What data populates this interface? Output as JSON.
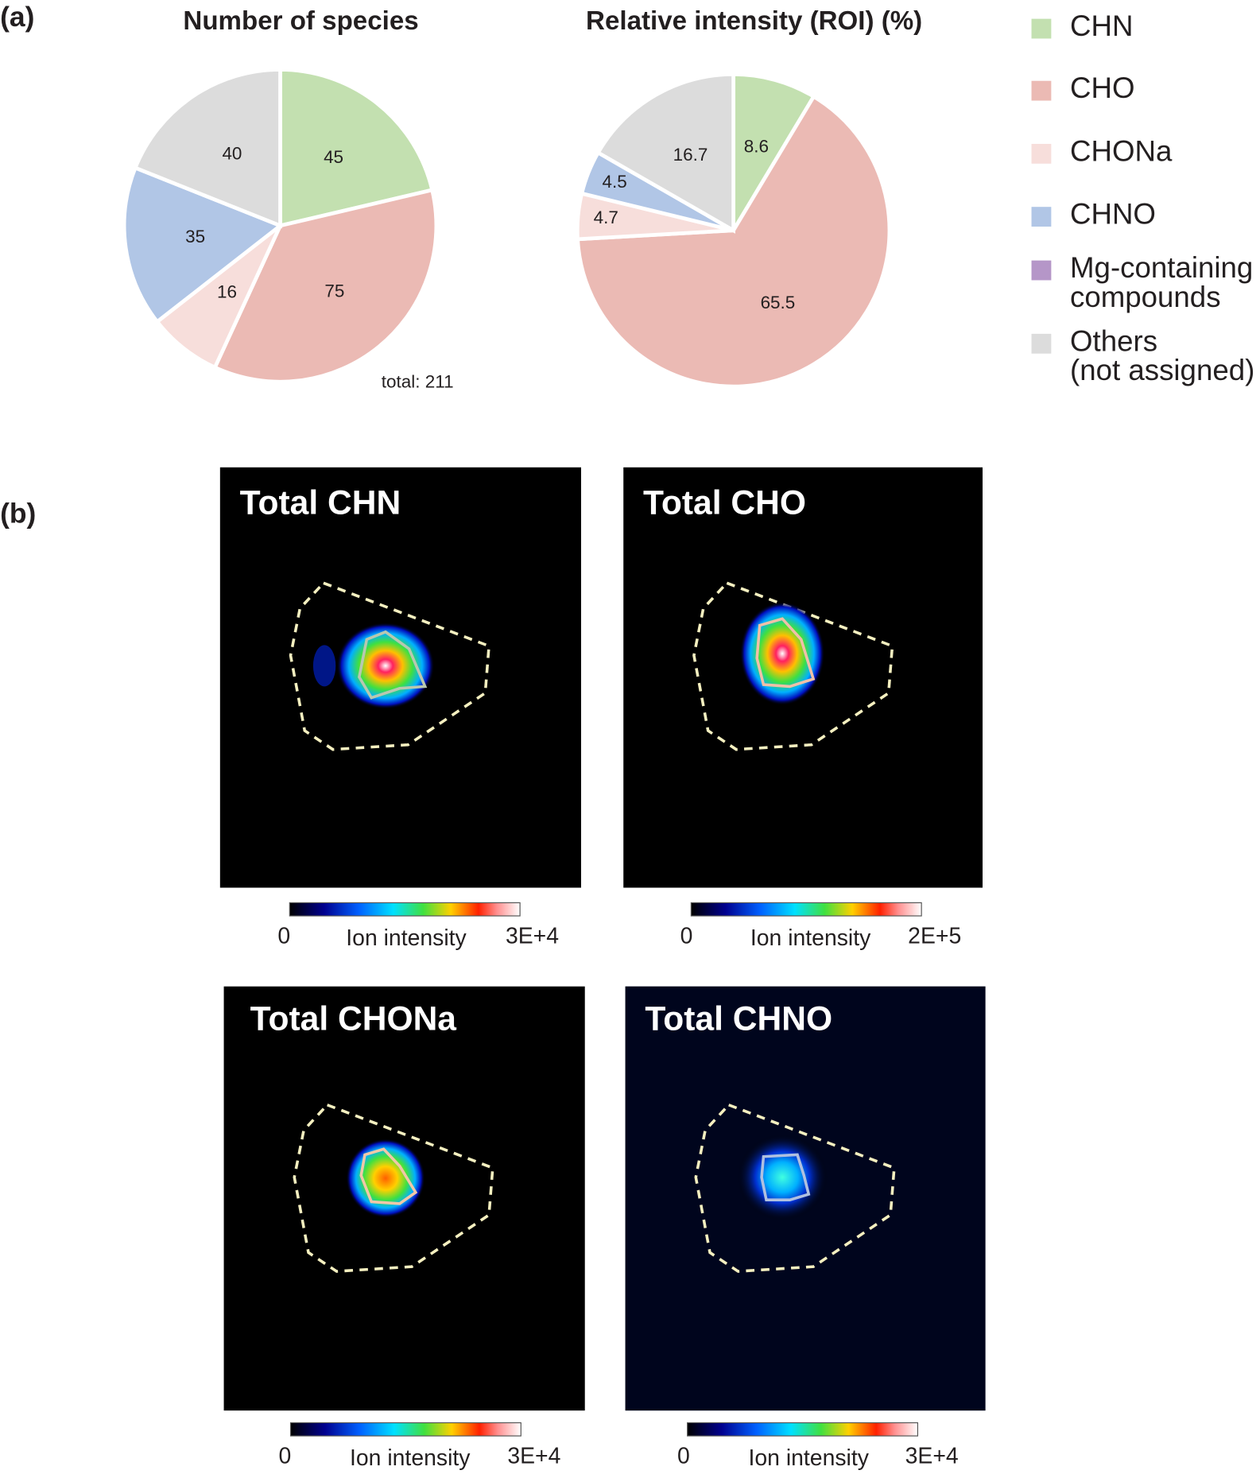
{
  "panel_labels": [
    "(a)",
    "(b)"
  ],
  "chart_data": [
    {
      "type": "pie",
      "title": "Number of species",
      "categories": [
        "CHN",
        "CHO",
        "CHONa",
        "CHNO",
        "Others"
      ],
      "values": [
        45,
        75,
        16,
        35,
        40
      ],
      "colors": [
        "#c3e0b0",
        "#ebbab4",
        "#f7dedb",
        "#b1c6e6",
        "#dcdcdc"
      ],
      "annotation": "total: 211"
    },
    {
      "type": "pie",
      "title": "Relative intensity (ROI) (%)",
      "categories": [
        "CHN",
        "CHO",
        "CHONa",
        "CHNO",
        "Others"
      ],
      "values": [
        8.6,
        65.5,
        4.7,
        4.5,
        16.7
      ],
      "colors": [
        "#c3e0b0",
        "#ebbab4",
        "#f7dedb",
        "#b1c6e6",
        "#dcdcdc"
      ]
    }
  ],
  "legend": [
    {
      "label": [
        "CHN"
      ],
      "color": "#c3e0b0"
    },
    {
      "label": [
        "CHO"
      ],
      "color": "#ebbab4"
    },
    {
      "label": [
        "CHONa"
      ],
      "color": "#f7dedb"
    },
    {
      "label": [
        "CHNO"
      ],
      "color": "#b1c6e6"
    },
    {
      "label": [
        "Mg-containing",
        "compounds"
      ],
      "color": "#b596c8"
    },
    {
      "label": [
        "Others",
        "(not assigned)"
      ],
      "color": "#dcdcdc"
    }
  ],
  "panels": [
    {
      "title": "Total CHN",
      "colorbar": {
        "min": "0",
        "label": "Ion intensity",
        "max": "3E+4"
      }
    },
    {
      "title": "Total CHO",
      "colorbar": {
        "min": "0",
        "label": "Ion intensity",
        "max": "2E+5"
      }
    },
    {
      "title": "Total CHONa",
      "colorbar": {
        "min": "0",
        "label": "Ion intensity",
        "max": "3E+4"
      }
    },
    {
      "title": "Total CHNO",
      "colorbar": {
        "min": "0",
        "label": "Ion intensity",
        "max": "3E+4"
      }
    }
  ]
}
